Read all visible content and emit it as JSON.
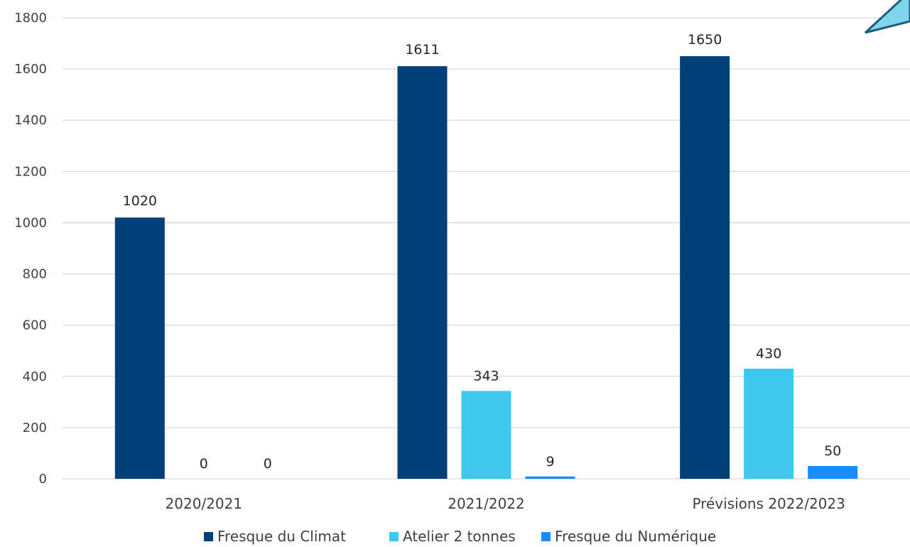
{
  "chart_data": {
    "type": "bar",
    "title": "",
    "xlabel": "",
    "ylabel": "",
    "ylim": [
      0,
      1800
    ],
    "yticks": [
      0,
      200,
      400,
      600,
      800,
      1000,
      1200,
      1400,
      1600,
      1800
    ],
    "grid": true,
    "legend_position": "bottom",
    "categories": [
      "2020/2021",
      "2021/2022",
      "Prévisions 2022/2023"
    ],
    "series": [
      {
        "name": "Fresque du Climat",
        "color": "#003f78",
        "values": [
          1020,
          1611,
          1650
        ]
      },
      {
        "name": "Atelier 2 tonnes",
        "color": "#3fc8ef",
        "values": [
          0,
          343,
          430
        ]
      },
      {
        "name": "Fresque du Numérique",
        "color": "#1a8cff",
        "values": [
          0,
          9,
          50
        ]
      }
    ]
  },
  "decoration": {
    "shape": "corner-arrow-graphic",
    "fill": "#7fd6ec",
    "stroke": "#1f5c7a"
  }
}
